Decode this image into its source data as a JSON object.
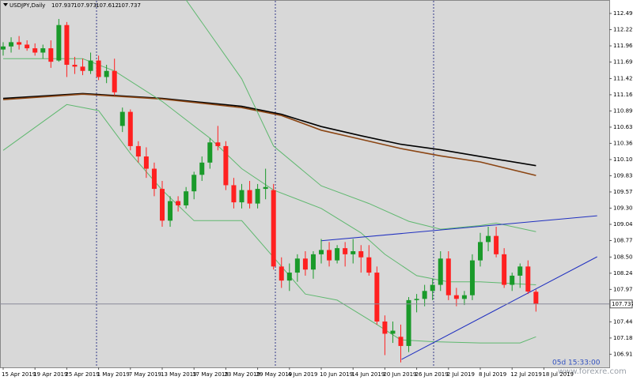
{
  "chart_data": {
    "type": "candlestick",
    "title": "USDJPY,Daily",
    "categories": [
      "15 Apr 2019",
      null,
      null,
      null,
      "19 Apr 2019",
      null,
      null,
      null,
      "25 Apr 2019",
      null,
      null,
      null,
      "1 May 2019",
      null,
      null,
      null,
      "7 May 2019",
      null,
      null,
      null,
      "13 May 2019",
      null,
      null,
      null,
      "17 May 2019",
      null,
      null,
      null,
      "23 May 2019",
      null,
      null,
      null,
      "29 May 2019",
      null,
      null,
      null,
      "4 Jun 2019",
      null,
      null,
      null,
      "10 Jun 2019",
      null,
      null,
      null,
      "14 Jun 2019",
      null,
      null,
      null,
      "20 Jun 2019",
      null,
      null,
      null,
      "26 Jun 2019",
      null,
      null,
      null,
      "2 Jul 2019",
      null,
      null,
      null,
      "8 Jul 2019",
      null,
      null,
      null,
      "12 Jul 2019",
      null,
      null,
      null,
      "18 Jul 2019"
    ],
    "open": [
      111.9,
      111.95,
      112.02,
      111.98,
      111.92,
      111.85,
      111.92,
      111.72,
      112.3,
      111.65,
      111.62,
      111.55,
      111.72,
      111.45,
      111.55,
      110.65,
      110.88,
      110.32,
      110.15,
      109.95,
      109.62,
      109.1,
      109.42,
      109.35,
      109.58,
      109.85,
      110.05,
      110.38,
      110.32,
      109.68,
      109.4,
      109.6,
      109.38,
      109.62,
      109.6,
      108.35,
      108.12,
      108.25,
      108.48,
      108.3,
      108.55,
      108.62,
      108.45,
      108.65,
      108.55,
      108.6,
      108.5,
      108.25,
      107.45,
      107.25,
      107.2,
      107.05,
      107.8,
      107.82,
      107.95,
      108.05,
      108.48,
      107.88,
      107.82,
      107.88,
      108.45,
      108.75,
      108.85,
      108.55,
      108.05,
      108.2,
      108.35,
      107.937,
      null
    ],
    "high": [
      112.02,
      112.1,
      112.12,
      112.05,
      112.0,
      111.98,
      112.05,
      112.4,
      112.35,
      111.78,
      111.75,
      111.85,
      111.8,
      111.65,
      111.75,
      110.95,
      110.92,
      110.4,
      110.3,
      110.05,
      109.75,
      109.5,
      109.5,
      109.65,
      109.9,
      110.15,
      110.45,
      110.65,
      110.4,
      109.8,
      109.7,
      109.75,
      109.7,
      109.95,
      109.7,
      108.5,
      108.4,
      108.55,
      108.6,
      108.6,
      108.8,
      108.75,
      108.7,
      108.75,
      108.8,
      108.7,
      108.7,
      108.35,
      107.55,
      107.45,
      107.4,
      107.85,
      107.9,
      108.05,
      108.15,
      108.6,
      108.6,
      108.0,
      107.95,
      108.55,
      108.9,
      109.0,
      109.0,
      108.65,
      108.25,
      108.4,
      108.45,
      107.973,
      null
    ],
    "low": [
      111.8,
      111.85,
      111.9,
      111.88,
      111.8,
      111.75,
      111.6,
      111.7,
      111.45,
      111.5,
      111.48,
      111.5,
      111.4,
      111.35,
      111.15,
      110.55,
      110.25,
      110.05,
      109.8,
      109.5,
      109.0,
      109.0,
      109.25,
      109.3,
      109.45,
      109.75,
      109.95,
      110.25,
      109.6,
      109.3,
      109.3,
      109.3,
      109.3,
      109.45,
      108.3,
      108.0,
      107.95,
      108.1,
      108.2,
      108.15,
      108.4,
      108.35,
      108.4,
      108.35,
      108.4,
      108.25,
      108.2,
      107.4,
      106.9,
      107.1,
      106.78,
      106.95,
      107.6,
      107.7,
      107.8,
      107.95,
      107.8,
      107.7,
      107.72,
      107.8,
      108.35,
      108.6,
      108.5,
      108.0,
      107.95,
      108.0,
      107.9,
      107.612,
      null
    ],
    "close": [
      111.95,
      112.02,
      111.98,
      111.92,
      111.85,
      111.92,
      111.7,
      112.3,
      111.65,
      111.62,
      111.55,
      111.72,
      111.45,
      111.55,
      111.2,
      110.88,
      110.32,
      110.15,
      109.95,
      109.62,
      109.1,
      109.42,
      109.35,
      109.58,
      109.85,
      110.05,
      110.38,
      110.32,
      109.68,
      109.4,
      109.6,
      109.38,
      109.62,
      109.65,
      108.35,
      108.12,
      108.25,
      108.48,
      108.3,
      108.55,
      108.62,
      108.45,
      108.65,
      108.55,
      108.6,
      108.5,
      108.25,
      107.45,
      107.25,
      107.3,
      107.05,
      107.8,
      107.82,
      107.95,
      108.05,
      108.48,
      107.88,
      107.82,
      107.88,
      108.45,
      108.75,
      108.85,
      108.55,
      108.05,
      108.2,
      108.35,
      107.94,
      107.737,
      null
    ],
    "up_color": "#1a9a2a",
    "down_color": "#ff2020",
    "lines": [
      {
        "color": "#000000",
        "x": [
          0,
          10,
          20,
          30,
          35,
          40,
          45,
          50,
          55,
          60,
          67
        ],
        "values": [
          111.1,
          111.18,
          111.1,
          110.97,
          110.84,
          110.64,
          110.49,
          110.35,
          110.26,
          110.15,
          110.0
        ]
      },
      {
        "color": "#8b4513",
        "x": [
          0,
          10,
          20,
          30,
          35,
          40,
          45,
          50,
          55,
          60,
          67
        ],
        "values": [
          111.08,
          111.17,
          111.09,
          110.95,
          110.82,
          110.58,
          110.43,
          110.28,
          110.16,
          110.06,
          109.84
        ]
      },
      {
        "color": "#5fb86f",
        "x": [
          23,
          30,
          34,
          40,
          46,
          51,
          55,
          60,
          62,
          67
        ],
        "values": [
          112.71,
          111.42,
          110.32,
          109.67,
          109.38,
          109.09,
          108.96,
          109.02,
          109.06,
          108.92
        ]
      },
      {
        "color": "#5fb86f",
        "x": [
          0,
          10,
          14,
          20,
          26,
          30,
          34,
          40,
          45,
          48,
          52,
          56,
          60,
          67
        ],
        "values": [
          111.75,
          111.75,
          111.55,
          111.05,
          110.45,
          109.95,
          109.6,
          109.3,
          108.9,
          108.55,
          108.2,
          108.1,
          108.1,
          108.05
        ]
      },
      {
        "color": "#5fb86f",
        "x": [
          0,
          8,
          12,
          16,
          20,
          24,
          30,
          34,
          38,
          42,
          47,
          50,
          54,
          60,
          65,
          67
        ],
        "values": [
          110.25,
          111.0,
          110.9,
          110.2,
          109.6,
          109.1,
          109.1,
          108.5,
          107.9,
          107.8,
          107.4,
          107.15,
          107.12,
          107.1,
          107.1,
          107.2
        ]
      },
      {
        "color": "#2030c0",
        "x": [
          40,
          74.7
        ],
        "values": [
          108.77,
          109.18
        ]
      },
      {
        "color": "#2030c0",
        "x": [
          50.1,
          74.7
        ],
        "values": [
          106.83,
          108.51
        ]
      }
    ],
    "ylim": [
      106.7,
      112.71
    ],
    "yticks": [
      {
        "value": 112.49,
        "label": "112.490"
      },
      {
        "value": 112.225,
        "label": "112.225"
      },
      {
        "value": 111.96,
        "label": "111.960"
      },
      {
        "value": 111.695,
        "label": "111.695"
      },
      {
        "value": 111.425,
        "label": "111.425"
      },
      {
        "value": 111.16,
        "label": "111.160"
      },
      {
        "value": 110.895,
        "label": "110.895"
      },
      {
        "value": 110.63,
        "label": "110.630"
      },
      {
        "value": 110.365,
        "label": "110.365"
      },
      {
        "value": 110.1,
        "label": "110.100"
      },
      {
        "value": 109.835,
        "label": "109.835"
      },
      {
        "value": 109.57,
        "label": "109.570"
      },
      {
        "value": 109.305,
        "label": "109.305"
      },
      {
        "value": 109.04,
        "label": "109.040"
      },
      {
        "value": 108.775,
        "label": "108.775"
      },
      {
        "value": 108.505,
        "label": "108.505"
      },
      {
        "value": 108.24,
        "label": "108.240"
      },
      {
        "value": 107.975,
        "label": "107.975"
      },
      {
        "value": 107.445,
        "label": "107.445"
      },
      {
        "value": 107.18,
        "label": "107.180"
      },
      {
        "value": 106.915,
        "label": "106.915"
      }
    ],
    "current_price": {
      "value": 107.737,
      "label": "107.737"
    },
    "timer": "05d 15:33:00",
    "watermark": "www.forexre.com"
  }
}
